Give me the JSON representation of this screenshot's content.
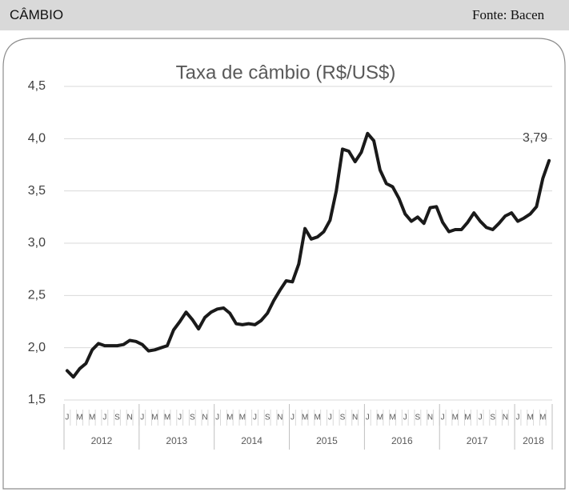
{
  "header": {
    "left": "CÂMBIO",
    "right": "Fonte: Bacen"
  },
  "chart_data": {
    "type": "line",
    "title": "Taxa de câmbio (R$/US$)",
    "categories": [
      "J",
      null,
      "M",
      null,
      "M",
      null,
      "J",
      null,
      "S",
      null,
      "N",
      null,
      "J",
      null,
      "M",
      null,
      "M",
      null,
      "J",
      null,
      "S",
      null,
      "N",
      null,
      "J",
      null,
      "M",
      null,
      "M",
      null,
      "J",
      null,
      "S",
      null,
      "N",
      null,
      "J",
      null,
      "M",
      null,
      "M",
      null,
      "J",
      null,
      "S",
      null,
      "N",
      null,
      "J",
      null,
      "M",
      null,
      "M",
      null,
      "J",
      null,
      "S",
      null,
      "N",
      null,
      "J",
      null,
      "M",
      null,
      "M",
      null,
      "J",
      null,
      "S",
      null,
      "N",
      null,
      "J",
      null,
      "M",
      null,
      "M",
      null
    ],
    "year_groups": [
      {
        "label": "2012",
        "months": 12
      },
      {
        "label": "2013",
        "months": 12
      },
      {
        "label": "2014",
        "months": 12
      },
      {
        "label": "2015",
        "months": 12
      },
      {
        "label": "2016",
        "months": 12
      },
      {
        "label": "2017",
        "months": 12
      },
      {
        "label": "2018",
        "months": 6
      }
    ],
    "series": [
      {
        "name": "Taxa de câmbio",
        "color": "#1a1a1a",
        "values": [
          1.78,
          1.72,
          1.8,
          1.85,
          1.98,
          2.04,
          2.02,
          2.02,
          2.02,
          2.03,
          2.07,
          2.06,
          2.03,
          1.97,
          1.98,
          2.0,
          2.02,
          2.17,
          2.25,
          2.34,
          2.27,
          2.18,
          2.29,
          2.34,
          2.37,
          2.38,
          2.33,
          2.23,
          2.22,
          2.23,
          2.22,
          2.26,
          2.33,
          2.45,
          2.55,
          2.64,
          2.63,
          2.8,
          3.14,
          3.04,
          3.06,
          3.11,
          3.22,
          3.5,
          3.9,
          3.88,
          3.78,
          3.87,
          4.05,
          3.98,
          3.7,
          3.57,
          3.54,
          3.43,
          3.28,
          3.21,
          3.25,
          3.19,
          3.34,
          3.35,
          3.2,
          3.11,
          3.13,
          3.13,
          3.2,
          3.29,
          3.21,
          3.15,
          3.13,
          3.19,
          3.26,
          3.29,
          3.21,
          3.24,
          3.28,
          3.35,
          3.62,
          3.79
        ],
        "value_labels": [
          null,
          null,
          null,
          null,
          null,
          null,
          null,
          null,
          null,
          null,
          null,
          null,
          null,
          null,
          null,
          null,
          null,
          null,
          null,
          null,
          null,
          null,
          null,
          null,
          null,
          null,
          null,
          null,
          null,
          null,
          null,
          null,
          null,
          null,
          null,
          null,
          null,
          null,
          null,
          null,
          null,
          null,
          null,
          null,
          null,
          null,
          null,
          null,
          null,
          null,
          null,
          null,
          null,
          null,
          null,
          null,
          null,
          null,
          null,
          null,
          null,
          null,
          null,
          null,
          null,
          null,
          null,
          null,
          null,
          null,
          null,
          null,
          null,
          null,
          null,
          null,
          null,
          "3,79"
        ]
      }
    ],
    "ylim": [
      1.5,
      4.5
    ],
    "yticks": [
      {
        "value": 1.5,
        "label": "1,5"
      },
      {
        "value": 2.0,
        "label": "2,0"
      },
      {
        "value": 2.5,
        "label": "2,5"
      },
      {
        "value": 3.0,
        "label": "3,0"
      },
      {
        "value": 3.5,
        "label": "3,5"
      },
      {
        "value": 4.0,
        "label": "4,0"
      },
      {
        "value": 4.5,
        "label": "4,5"
      }
    ],
    "grid": true
  }
}
